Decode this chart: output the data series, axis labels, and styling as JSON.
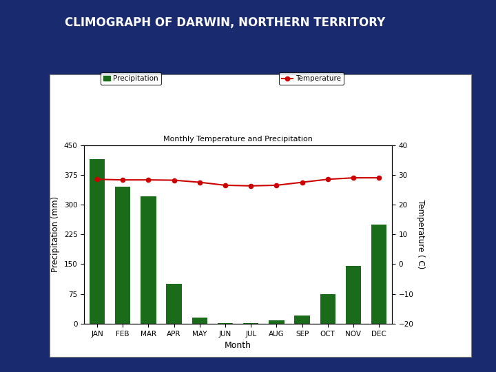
{
  "title": "CLIMOGRAPH OF DARWIN, NORTHERN TERRITORY",
  "chart_title": "Monthly Temperature and Precipitation",
  "months": [
    "JAN",
    "FEB",
    "MAR",
    "APR",
    "MAY",
    "JUN",
    "JUL",
    "AUG",
    "SEP",
    "OCT",
    "NOV",
    "DEC"
  ],
  "precipitation": [
    415,
    345,
    320,
    100,
    15,
    2,
    2,
    8,
    20,
    75,
    145,
    250
  ],
  "temperature": [
    28.5,
    28.3,
    28.3,
    28.2,
    27.5,
    26.5,
    26.3,
    26.5,
    27.5,
    28.5,
    29.0,
    29.0
  ],
  "bar_color": "#1a6b1a",
  "line_color": "#cc0000",
  "bg_color": "#1a2a6e",
  "chart_bg": "#ffffff",
  "ylabel_left": "Precipitation (mm)",
  "ylabel_right": "Temperature ( C)",
  "xlabel": "Month",
  "ylim_left": [
    0,
    450
  ],
  "ylim_right": [
    -20,
    40
  ],
  "yticks_left": [
    0,
    75,
    150,
    225,
    300,
    375,
    450
  ],
  "yticks_right": [
    -20,
    -10,
    0,
    10,
    20,
    30,
    40
  ],
  "legend_precip": "Precipitation",
  "legend_temp": "Temperature"
}
